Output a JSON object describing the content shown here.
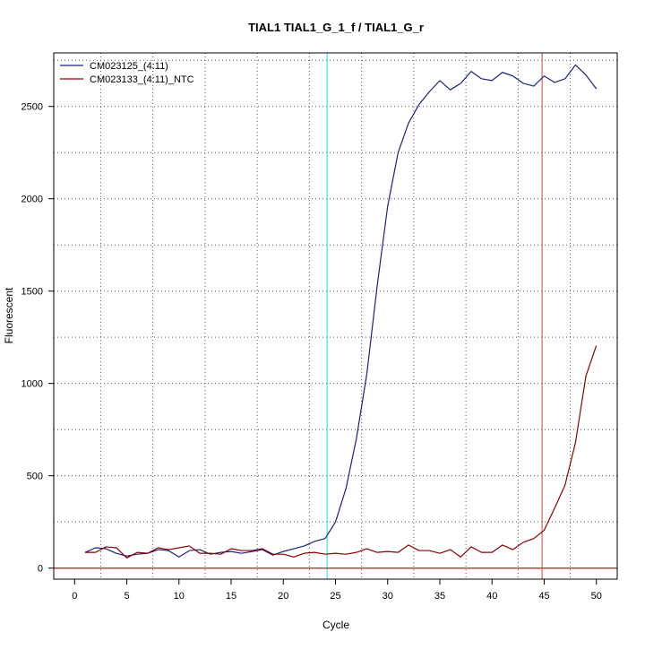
{
  "chart_data": {
    "type": "line",
    "title": "TIAL1  TIAL1_G_1_f / TIAL1_G_r",
    "xlabel": "Cycle",
    "ylabel": "Fluorescent",
    "xlim": [
      -2,
      52
    ],
    "ylim": [
      -60,
      2790
    ],
    "x_ticks": [
      0,
      5,
      10,
      15,
      20,
      25,
      30,
      35,
      40,
      45,
      50
    ],
    "y_ticks": [
      0,
      500,
      1000,
      1500,
      2000,
      2500
    ],
    "x_grid": [
      2.5,
      7.5,
      12.5,
      17.5,
      22.5,
      27.5,
      32.5,
      37.5,
      42.5,
      47.5
    ],
    "y_grid": [
      0,
      250,
      500,
      750,
      1000,
      1250,
      1500,
      1750,
      2000,
      2250,
      2500,
      2750
    ],
    "grid": true,
    "legend_position": "top-left",
    "vlines": [
      {
        "x": 24.2,
        "color": "#40e0e0"
      },
      {
        "x": 44.8,
        "color": "#e06060"
      }
    ],
    "hlines": [
      {
        "y": 0,
        "color": "#c8282a"
      }
    ],
    "x": [
      1,
      2,
      3,
      4,
      5,
      6,
      7,
      8,
      9,
      10,
      11,
      12,
      13,
      14,
      15,
      16,
      17,
      18,
      19,
      20,
      21,
      22,
      23,
      24,
      25,
      26,
      27,
      28,
      29,
      30,
      31,
      32,
      33,
      34,
      35,
      36,
      37,
      38,
      39,
      40,
      41,
      42,
      43,
      44,
      45,
      46,
      47,
      48,
      49,
      50
    ],
    "series": [
      {
        "name": "CM023125_(4:11)",
        "color": "#1a237e",
        "values": [
          85,
          110,
          105,
          80,
          65,
          75,
          80,
          100,
          95,
          60,
          95,
          100,
          75,
          85,
          90,
          80,
          90,
          100,
          70,
          90,
          105,
          120,
          145,
          160,
          250,
          430,
          700,
          1050,
          1530,
          1960,
          2250,
          2410,
          2510,
          2580,
          2640,
          2590,
          2625,
          2690,
          2650,
          2640,
          2685,
          2665,
          2625,
          2610,
          2665,
          2630,
          2650,
          2725,
          2670,
          2595
        ]
      },
      {
        "name": "CM023133_(4:11)_NTC",
        "color": "#8b0000",
        "values": [
          85,
          85,
          115,
          110,
          55,
          85,
          80,
          110,
          100,
          110,
          120,
          80,
          80,
          75,
          105,
          95,
          95,
          105,
          75,
          75,
          60,
          80,
          85,
          75,
          80,
          75,
          85,
          105,
          85,
          90,
          85,
          125,
          95,
          95,
          80,
          100,
          60,
          115,
          85,
          85,
          125,
          100,
          140,
          160,
          205,
          325,
          450,
          680,
          1040,
          1205
        ]
      }
    ]
  }
}
